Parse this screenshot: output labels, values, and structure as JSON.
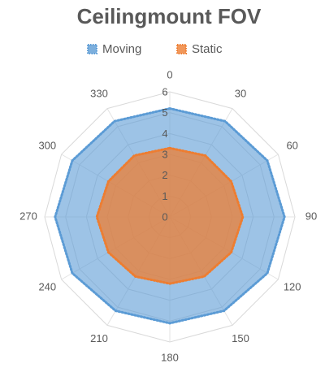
{
  "chart_data": {
    "type": "radar",
    "title": "Ceilingmount FOV",
    "categories": [
      "0",
      "30",
      "60",
      "90",
      "120",
      "150",
      "180",
      "210",
      "240",
      "270",
      "300",
      "330"
    ],
    "series": [
      {
        "name": "Moving",
        "color": "#5b9bd5",
        "values": [
          5.2,
          5.3,
          5.4,
          5.5,
          5.4,
          5.2,
          5.1,
          5.2,
          5.4,
          5.5,
          5.4,
          5.3
        ]
      },
      {
        "name": "Static",
        "color": "#ed7d31",
        "values": [
          3.3,
          3.4,
          3.4,
          3.5,
          3.4,
          3.3,
          3.2,
          3.3,
          3.4,
          3.5,
          3.4,
          3.4
        ]
      }
    ],
    "ylim": [
      0,
      6
    ],
    "yticks": [
      0,
      1,
      2,
      3,
      4,
      5,
      6
    ],
    "grid": true,
    "legend": "top"
  }
}
